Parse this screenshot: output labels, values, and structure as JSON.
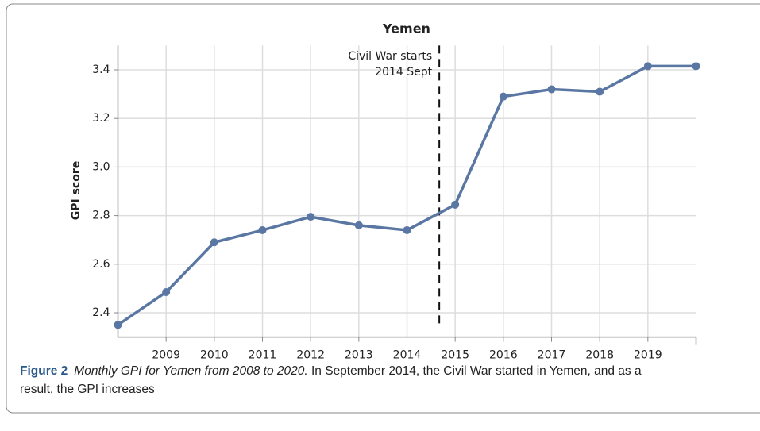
{
  "chart_data": {
    "type": "line",
    "title": "Yemen",
    "ylabel": "GPI score",
    "x": [
      2008,
      2009,
      2010,
      2011,
      2012,
      2013,
      2014,
      2015,
      2016,
      2017,
      2018,
      2019,
      2020
    ],
    "series": [
      {
        "name": "Yemen",
        "color": "#5a76a3",
        "values": [
          2.35,
          2.485,
          2.69,
          2.74,
          2.795,
          2.76,
          2.74,
          2.845,
          3.29,
          3.32,
          3.31,
          3.415,
          3.415
        ]
      }
    ],
    "xlim": [
      2008,
      2020
    ],
    "xticks": [
      2009,
      2010,
      2011,
      2012,
      2013,
      2014,
      2015,
      2016,
      2017,
      2018,
      2019
    ],
    "ylim": [
      2.3,
      3.5
    ],
    "yticks": [
      2.4,
      2.6,
      2.8,
      {
        "value": 3,
        "label": "3.0"
      },
      3.2,
      3.4
    ],
    "grid": true,
    "annotation": {
      "x": 2014.67,
      "lines": [
        "Civil War starts",
        "2014 Sept"
      ]
    }
  },
  "caption": {
    "label": "Figure 2",
    "title": "Monthly GPI for Yemen from 2008 to 2020.",
    "text": " In September 2014, the Civil War started in Yemen, and as a",
    "text2": "result, the GPI increases"
  }
}
